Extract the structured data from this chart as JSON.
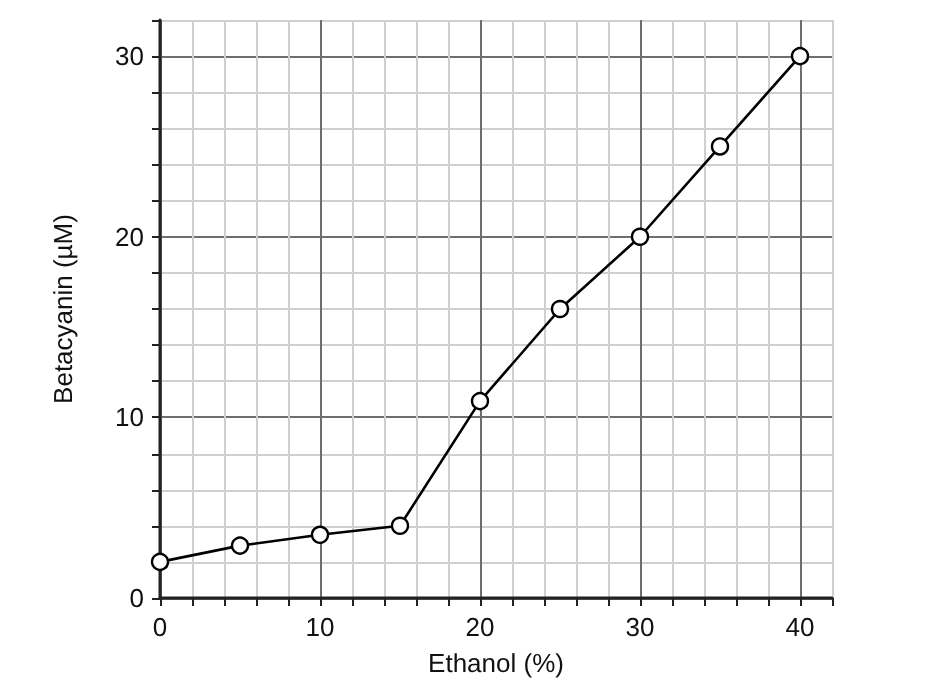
{
  "chart_data": {
    "type": "line",
    "xlabel": "Ethanol (%)",
    "ylabel": "Betacyanin (µM)",
    "x": [
      0,
      5,
      10,
      15,
      20,
      25,
      30,
      35,
      40
    ],
    "series": [
      {
        "color": "#000000",
        "values": [
          2.0,
          2.9,
          3.5,
          4.0,
          10.9,
          16.0,
          20.0,
          25.0,
          30.0
        ]
      }
    ],
    "xlim": [
      0,
      42
    ],
    "xticks": [
      0,
      10,
      20,
      30,
      40
    ],
    "ylim": [
      0,
      32
    ],
    "yticks": [
      0,
      10,
      20,
      30
    ],
    "grid": true,
    "marker": "circle",
    "line_style": "solid"
  }
}
